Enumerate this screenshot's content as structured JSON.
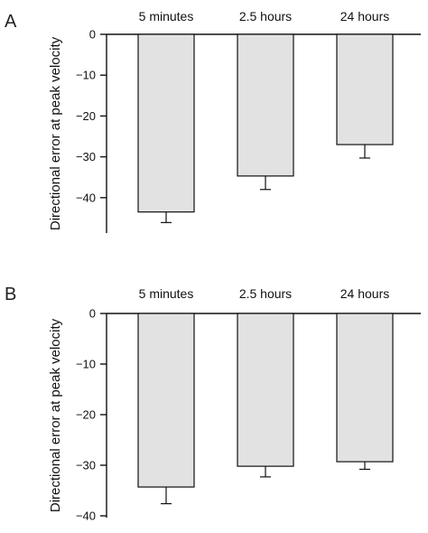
{
  "chart_data": [
    {
      "panel": "A",
      "type": "bar",
      "categories": [
        "5 minutes",
        "2.5 hours",
        "24 hours"
      ],
      "values": [
        -43.5,
        -34.7,
        -27
      ],
      "errors": [
        2.6,
        3.3,
        3.3
      ],
      "ylabel": "Directional error at peak velocity",
      "xlabel": "",
      "ylim": [
        -48,
        0
      ],
      "yticks": [
        0,
        -10,
        -20,
        -30,
        -40
      ],
      "ytick_labels": [
        "0",
        "−10",
        "−20",
        "−30",
        "−40"
      ],
      "bar_color": "#e2e2e2",
      "grid": false,
      "legend": "none"
    },
    {
      "panel": "B",
      "type": "bar",
      "categories": [
        "5 minutes",
        "2.5 hours",
        "24 hours"
      ],
      "values": [
        -34.3,
        -30.2,
        -29.3
      ],
      "errors": [
        3.3,
        2.1,
        1.5
      ],
      "ylabel": "Directional error at peak velocity",
      "xlabel": "",
      "ylim": [
        -40.5,
        0
      ],
      "yticks": [
        0,
        -10,
        -20,
        -30,
        -40
      ],
      "ytick_labels": [
        "0",
        "−10",
        "−20",
        "−30",
        "−40"
      ],
      "bar_color": "#e2e2e2",
      "grid": false,
      "legend": "none"
    }
  ]
}
